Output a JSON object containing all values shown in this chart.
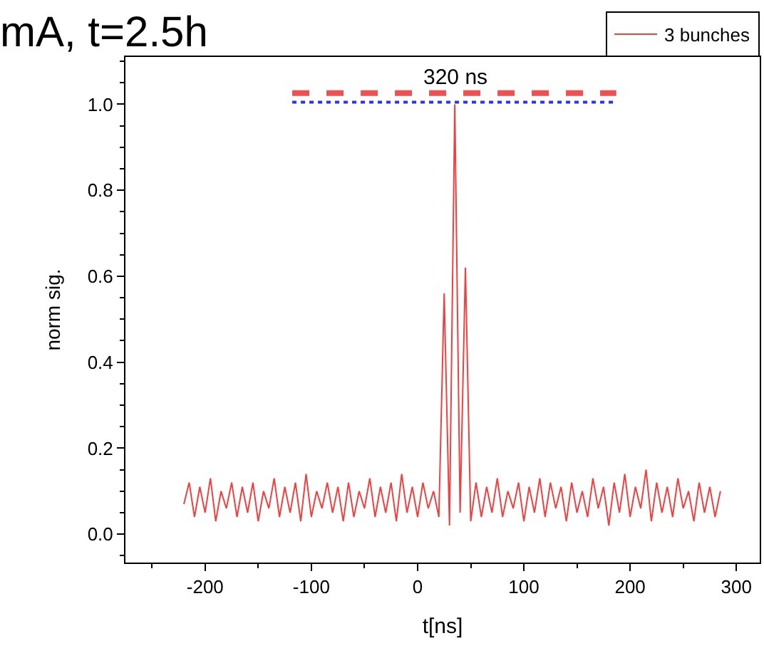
{
  "chart_data": {
    "type": "line",
    "title": "mA, t=2.5h",
    "xlabel": "t[ns]",
    "ylabel": "norm sig.",
    "xlim": [
      -275,
      322
    ],
    "xticks": [
      -200,
      -100,
      0,
      100,
      200,
      300
    ],
    "ylim": [
      -0.066,
      1.11
    ],
    "yticks": [
      {
        "value": 0,
        "label": "0.0"
      },
      0.2,
      0.4,
      0.6,
      0.8,
      {
        "value": 1,
        "label": "1.0"
      }
    ],
    "legend": "top right",
    "marker": "none",
    "annotations": [
      "320 ns"
    ],
    "series": [
      {
        "name": "3 bunches",
        "color": "#f04040",
        "line_style": "solid",
        "x": [
          -220,
          -215,
          -210,
          -205,
          -200,
          -195,
          -190,
          -185,
          -180,
          -175,
          -170,
          -165,
          -160,
          -155,
          -150,
          -145,
          -140,
          -135,
          -130,
          -125,
          -120,
          -115,
          -110,
          -105,
          -100,
          -95,
          -90,
          -85,
          -80,
          -75,
          -70,
          -65,
          -60,
          -55,
          -50,
          -45,
          -40,
          -35,
          -30,
          -25,
          -20,
          -15,
          -10,
          -5,
          0,
          5,
          10,
          15,
          20,
          25,
          30,
          35,
          40,
          45,
          50,
          55,
          60,
          65,
          70,
          75,
          80,
          85,
          90,
          95,
          100,
          105,
          110,
          115,
          120,
          125,
          130,
          135,
          140,
          145,
          150,
          155,
          160,
          165,
          170,
          175,
          180,
          185,
          190,
          195,
          200,
          205,
          210,
          215,
          220,
          225,
          230,
          235,
          240,
          245,
          250,
          255,
          260,
          265,
          270,
          275,
          280,
          285
        ],
        "values": [
          0.07,
          0.12,
          0.04,
          0.11,
          0.05,
          0.13,
          0.03,
          0.1,
          0.06,
          0.12,
          0.04,
          0.11,
          0.05,
          0.12,
          0.03,
          0.1,
          0.06,
          0.13,
          0.04,
          0.11,
          0.05,
          0.12,
          0.03,
          0.14,
          0.04,
          0.1,
          0.06,
          0.12,
          0.05,
          0.11,
          0.03,
          0.12,
          0.04,
          0.1,
          0.06,
          0.13,
          0.04,
          0.11,
          0.05,
          0.12,
          0.03,
          0.14,
          0.05,
          0.11,
          0.04,
          0.12,
          0.06,
          0.1,
          0.04,
          0.56,
          0.02,
          1.0,
          0.05,
          0.62,
          0.03,
          0.12,
          0.04,
          0.11,
          0.05,
          0.13,
          0.04,
          0.1,
          0.06,
          0.12,
          0.03,
          0.11,
          0.05,
          0.13,
          0.04,
          0.12,
          0.06,
          0.11,
          0.03,
          0.12,
          0.05,
          0.1,
          0.04,
          0.13,
          0.06,
          0.11,
          0.02,
          0.12,
          0.05,
          0.14,
          0.04,
          0.11,
          0.06,
          0.15,
          0.03,
          0.12,
          0.05,
          0.11,
          0.04,
          0.13,
          0.06,
          0.1,
          0.03,
          0.12,
          0.05,
          0.11,
          0.04,
          0.1
        ]
      },
      {
        "color": "#f05050",
        "line_style": "dashed",
        "x": [
          -118,
          187
        ],
        "values": [
          1.026,
          1.026
        ]
      },
      {
        "color": "#3030f0",
        "line_style": "dotted",
        "x": [
          -118,
          187
        ],
        "values": [
          1.005,
          1.005
        ]
      }
    ]
  }
}
